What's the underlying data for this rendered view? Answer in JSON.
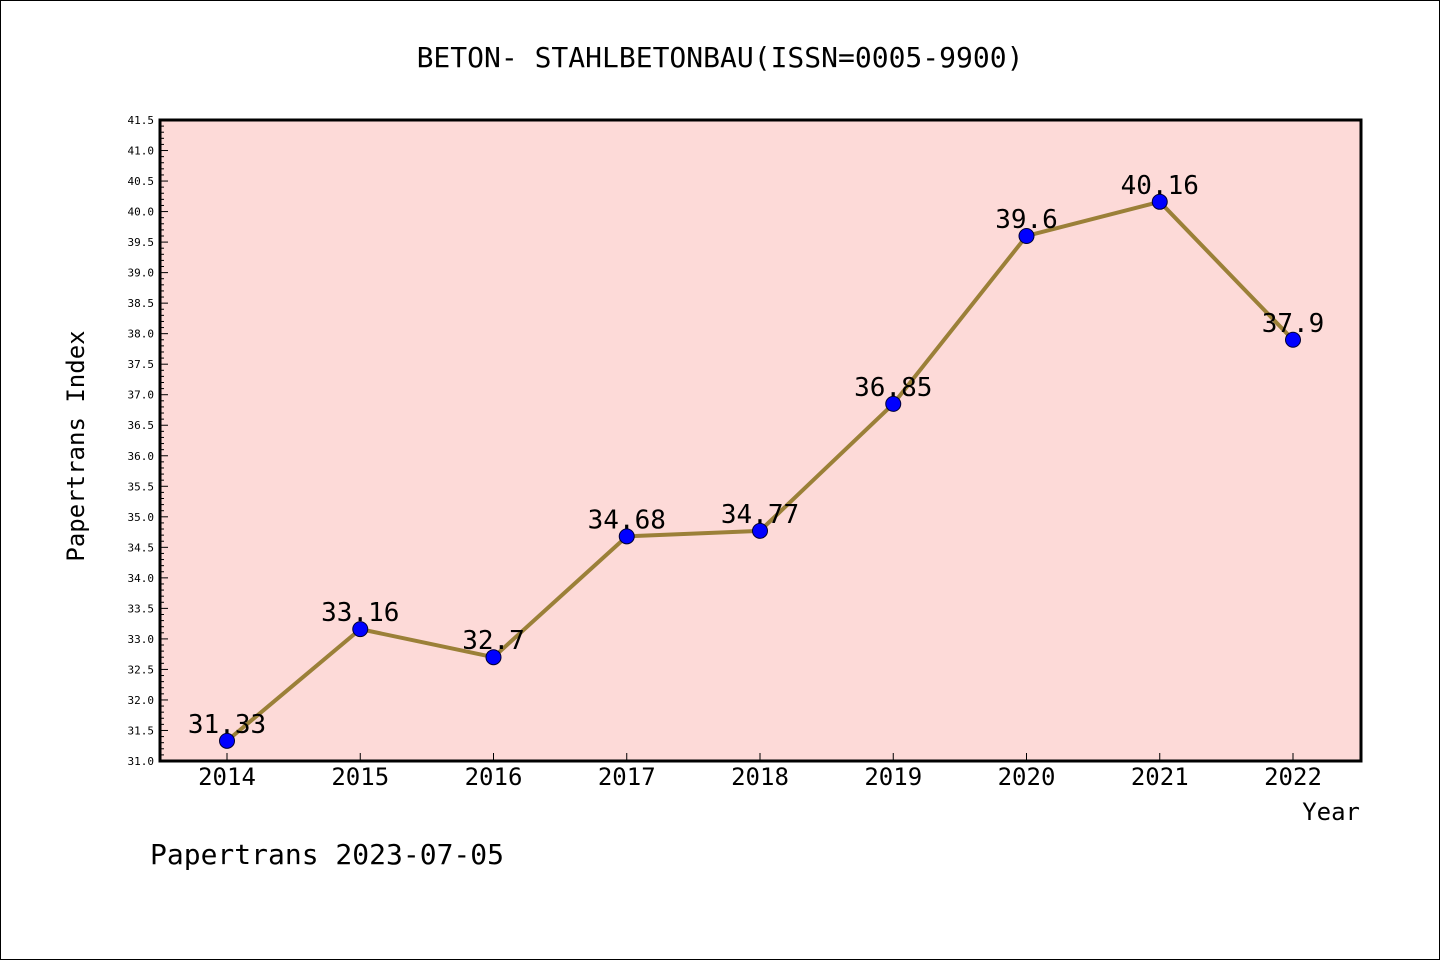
{
  "chart_data": {
    "type": "line",
    "title": "BETON- STAHLBETONBAU(ISSN=0005-9900)",
    "xlabel": "Year",
    "ylabel": "Papertrans Index",
    "x": [
      "2014",
      "2015",
      "2016",
      "2017",
      "2018",
      "2019",
      "2020",
      "2021",
      "2022"
    ],
    "series": [
      {
        "values": [
          31.33,
          33.16,
          32.7,
          34.68,
          34.77,
          36.85,
          39.6,
          40.16,
          37.9
        ],
        "data_labels": [
          "31.33",
          "33.16",
          "32.7",
          "34.68",
          "34.77",
          "36.85",
          "39.6",
          "40.16",
          "37.9"
        ],
        "line_color": "#9b8038",
        "marker_color": "#0000ff"
      }
    ],
    "ylim": [
      31.0,
      41.5
    ],
    "y_ticks": [
      "31.0",
      "31.5",
      "32.0",
      "32.5",
      "33.0",
      "33.5",
      "34.0",
      "34.5",
      "35.0",
      "35.5",
      "36.0",
      "36.5",
      "37.0",
      "37.5",
      "38.0",
      "38.5",
      "39.0",
      "39.5",
      "40.0",
      "40.5",
      "41.0",
      "41.5"
    ],
    "plot_background": "#fddad8",
    "grid": false,
    "legend": "none"
  },
  "footer": {
    "text": "Papertrans 2023-07-05"
  }
}
